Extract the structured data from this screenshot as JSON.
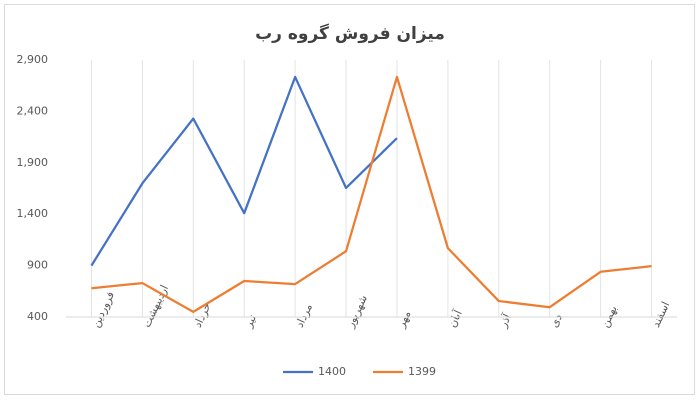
{
  "chart_data": {
    "type": "line",
    "title": "میزان فروش گروه رب",
    "categories": [
      "فروردین",
      "اردیبهشت",
      "خرداد",
      "تیر",
      "مرداد",
      "شهریور",
      "مهر",
      "آبان",
      "آذر",
      "دی",
      "بهمن",
      "اسفند"
    ],
    "series": [
      {
        "name": "1400",
        "color": "#4472c4",
        "values": [
          900,
          1700,
          2330,
          1410,
          2735,
          1655,
          2140,
          null,
          null,
          null,
          null,
          null
        ]
      },
      {
        "name": "1399",
        "color": "#ed7d31",
        "values": [
          680,
          730,
          450,
          750,
          720,
          1040,
          2735,
          1070,
          555,
          495,
          840,
          895
        ]
      }
    ],
    "ylim": [
      400,
      2900
    ],
    "yticks": [
      400,
      900,
      {
        "value": 1400,
        "label": "1,400"
      },
      {
        "value": 1900,
        "label": "1,900"
      },
      {
        "value": 2400,
        "label": "2,400"
      },
      {
        "value": 2900,
        "label": "2,900"
      }
    ],
    "grid": "x",
    "legend": "bottom"
  }
}
